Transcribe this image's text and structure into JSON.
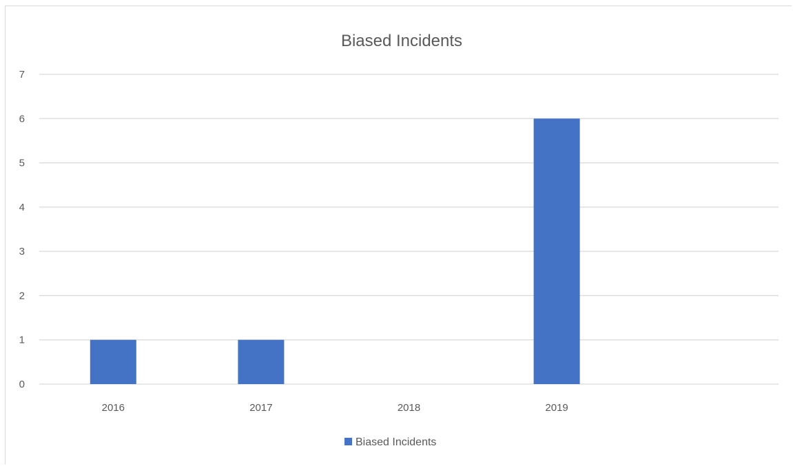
{
  "chart_data": {
    "type": "bar",
    "title": "Biased Incidents",
    "categories": [
      "2016",
      "2017",
      "2018",
      "2019",
      ""
    ],
    "series": [
      {
        "name": "Biased Incidents",
        "values": [
          1,
          1,
          0,
          6,
          null
        ],
        "color": "#4472c4"
      }
    ],
    "xlabel": "",
    "ylabel": "",
    "ylim": [
      0,
      7
    ],
    "yticks": [
      0,
      1,
      2,
      3,
      4,
      5,
      6,
      7
    ],
    "grid": true,
    "legend_position": "bottom",
    "colors": {
      "grid": "#d9d9d9",
      "text": "#595959",
      "bar": "#4472c4"
    }
  }
}
